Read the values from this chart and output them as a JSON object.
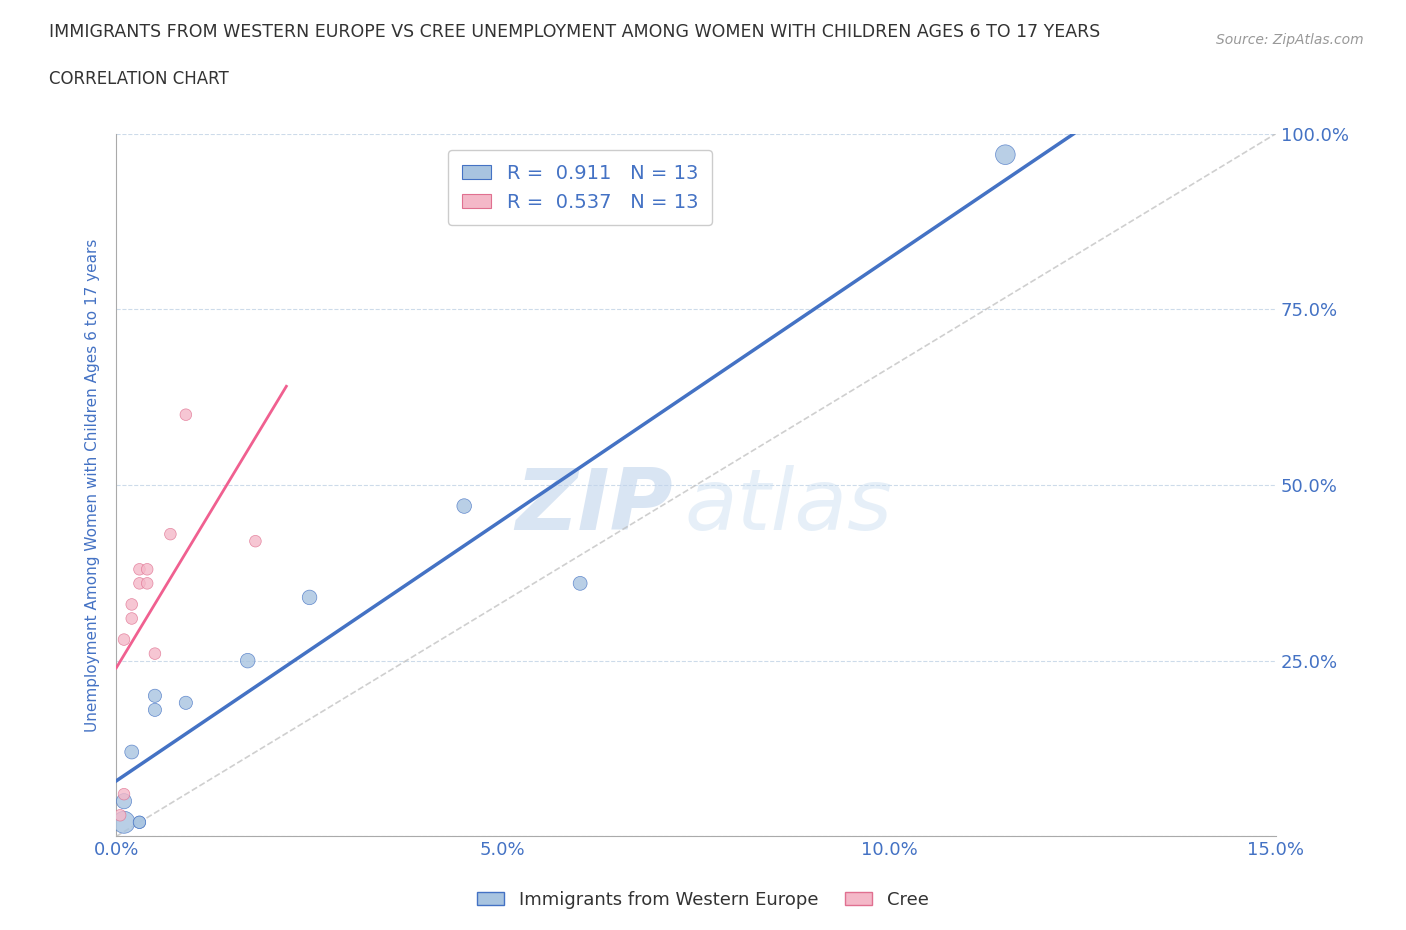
{
  "title": "IMMIGRANTS FROM WESTERN EUROPE VS CREE UNEMPLOYMENT AMONG WOMEN WITH CHILDREN AGES 6 TO 17 YEARS",
  "subtitle": "CORRELATION CHART",
  "source": "Source: ZipAtlas.com",
  "xlabel_ticks": [
    "0.0%",
    "5.0%",
    "10.0%",
    "15.0%"
  ],
  "ylabel_ticks_right": [
    "100.0%",
    "75.0%",
    "50.0%",
    "25.0%"
  ],
  "ylabel": "Unemployment Among Women with Children Ages 6 to 17 years",
  "xmin": 0.0,
  "xmax": 0.15,
  "ymin": 0.0,
  "ymax": 1.0,
  "blue_R": "0.911",
  "blue_N": "13",
  "pink_R": "0.537",
  "pink_N": "13",
  "blue_color": "#a8c4e0",
  "pink_color": "#f4b8c8",
  "blue_line_color": "#4472c4",
  "pink_line_color": "#f06090",
  "blue_label": "Immigrants from Western Europe",
  "pink_label": "Cree",
  "watermark_zip": "ZIP",
  "watermark_atlas": "atlas",
  "legend_R_color": "#4472c4",
  "blue_x": [
    0.001,
    0.001,
    0.002,
    0.003,
    0.003,
    0.005,
    0.005,
    0.009,
    0.017,
    0.025,
    0.045,
    0.06,
    0.115
  ],
  "blue_y": [
    0.02,
    0.05,
    0.12,
    0.02,
    0.02,
    0.18,
    0.2,
    0.19,
    0.25,
    0.34,
    0.47,
    0.36,
    0.97
  ],
  "blue_sizes": [
    250,
    120,
    100,
    80,
    80,
    90,
    90,
    90,
    110,
    110,
    110,
    100,
    200
  ],
  "pink_x": [
    0.0005,
    0.001,
    0.001,
    0.002,
    0.002,
    0.003,
    0.003,
    0.004,
    0.004,
    0.005,
    0.007,
    0.009,
    0.018
  ],
  "pink_y": [
    0.03,
    0.06,
    0.28,
    0.31,
    0.33,
    0.36,
    0.38,
    0.36,
    0.38,
    0.26,
    0.43,
    0.6,
    0.42
  ],
  "pink_sizes": [
    70,
    70,
    70,
    70,
    70,
    70,
    70,
    70,
    70,
    70,
    70,
    70,
    70
  ],
  "grid_color": "#c8d8e8",
  "background_color": "#ffffff",
  "title_color": "#333333",
  "axis_label_color": "#4472c4",
  "tick_label_color": "#4472c4"
}
